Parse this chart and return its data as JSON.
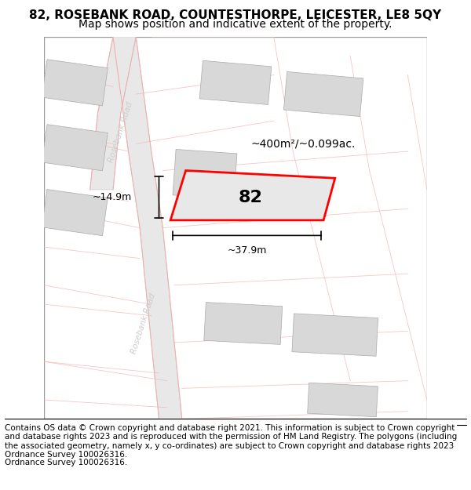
{
  "title": "82, ROSEBANK ROAD, COUNTESTHORPE, LEICESTER, LE8 5QY",
  "subtitle": "Map shows position and indicative extent of the property.",
  "footer": "Contains OS data © Crown copyright and database right 2021. This information is subject to Crown copyright and database rights 2023 and is reproduced with the permission of HM Land Registry. The polygons (including the associated geometry, namely x, y co-ordinates) are subject to Crown copyright and database rights 2023 Ordnance Survey 100026316.",
  "bg_color": "#f5f5f5",
  "map_bg": "#ffffff",
  "area_label": "~400m²/~0.099ac.",
  "parcel_number": "82",
  "width_label": "~37.9m",
  "height_label": "~14.9m",
  "parcel_color": "#ff0000",
  "parcel_fill": "#e8e8e8",
  "road_color": "#f0b0b0",
  "building_color": "#d8d8d8",
  "road_label": "Rosebank Road",
  "title_fontsize": 11,
  "subtitle_fontsize": 10,
  "footer_fontsize": 7.5
}
